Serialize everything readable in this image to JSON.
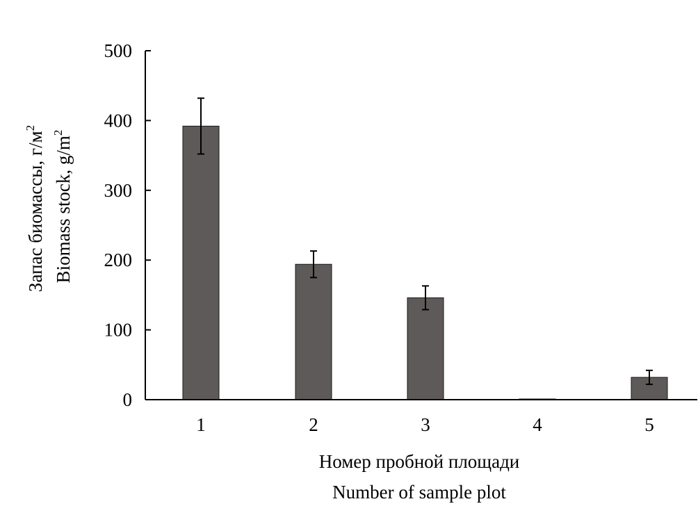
{
  "chart_data": {
    "type": "bar",
    "categories": [
      "1",
      "2",
      "3",
      "4",
      "5"
    ],
    "values": [
      392,
      194,
      146,
      1,
      32
    ],
    "error": [
      40,
      19,
      17,
      0,
      10
    ],
    "ylim": [
      0,
      500
    ],
    "yticks": [
      0,
      100,
      200,
      300,
      400,
      500
    ],
    "xlabel_lines": [
      "Номер пробной площади",
      "Number of sample plot"
    ],
    "ylabel_lines": [
      "Запас биомассы, г/м",
      "Biomass stock, g/m"
    ],
    "ylabel_superscript": "2",
    "bar_color": "#5e5a59",
    "grid": false
  }
}
